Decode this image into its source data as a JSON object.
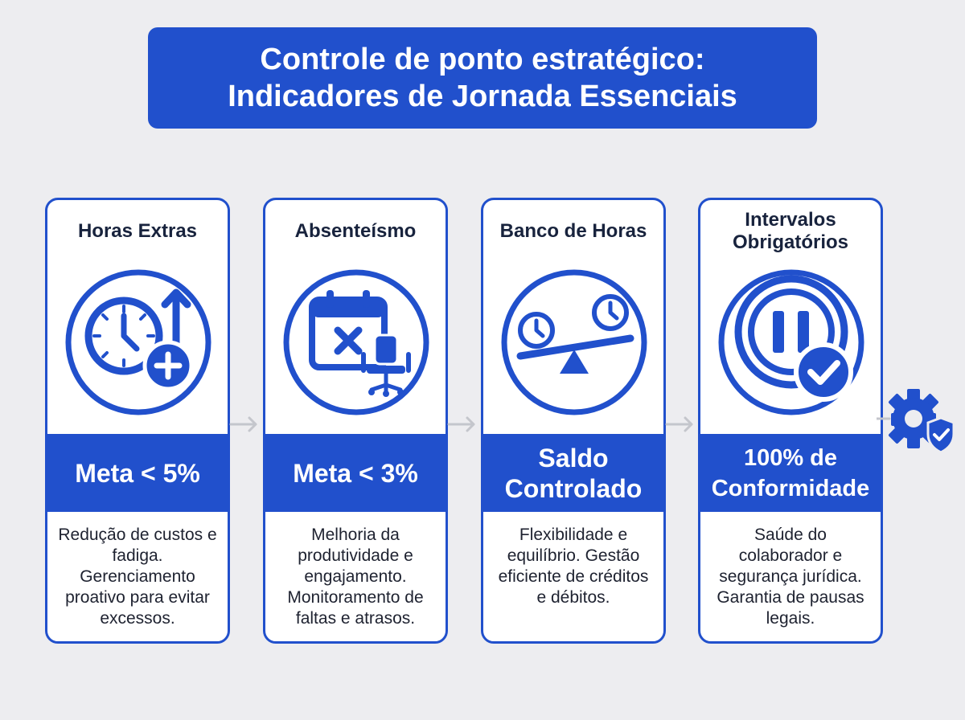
{
  "title": {
    "line1": "Controle de ponto estratégico:",
    "line2": "Indicadores de Jornada Essenciais"
  },
  "cards": [
    {
      "title_lines": [
        "Horas Extras"
      ],
      "icon": "clock-plus-arrow-icon",
      "metric_lines": [
        "Meta < 5%"
      ],
      "description": "Redução de custos e fadiga. Gerenciamento proativo para evitar excessos."
    },
    {
      "title_lines": [
        "Absenteísmo"
      ],
      "icon": "calendar-x-chair-icon",
      "metric_lines": [
        "Meta < 3%"
      ],
      "description": "Melhoria da produtividade e engajamento. Monitoramento de faltas e atrasos."
    },
    {
      "title_lines": [
        "Banco de Horas"
      ],
      "icon": "balance-clocks-icon",
      "metric_lines": [
        "Saldo",
        "Controlado"
      ],
      "description": "Flexibilidade e equilíbrio. Gestão eficiente de créditos e débitos."
    },
    {
      "title_lines": [
        "Intervalos",
        "Obrigatórios"
      ],
      "icon": "pause-check-icon",
      "metric_lines": [
        "100% de",
        "Conformidade"
      ],
      "description": "Saúde do colaborador e segurança jurídica. Garantia de pausas legais."
    }
  ],
  "colors": {
    "accent": "#2150cc",
    "background": "#ededf0",
    "card_text": "#18233d",
    "connector": "#c4c6cc"
  },
  "extra_icon": "gear-shield-check-icon"
}
